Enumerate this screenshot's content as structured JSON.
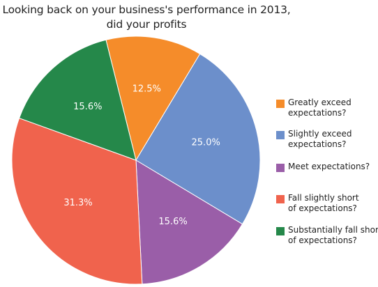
{
  "chart_data": {
    "type": "pie",
    "title": [
      "Looking back on your business's performance in 2013,",
      "did your profits"
    ],
    "categories": [
      [
        "Greatly exceed",
        "expectations?"
      ],
      [
        "Slightly exceed",
        "expectations?"
      ],
      [
        "Meet expectations?"
      ],
      [
        "Fall slightly short",
        "of expectations?"
      ],
      [
        "Substantially fall short",
        "of expectations?"
      ]
    ],
    "values": [
      12.5,
      25.0,
      15.6,
      31.3,
      15.6
    ],
    "data_labels": [
      "12.5%",
      "25.0%",
      "15.6%",
      "31.3%",
      "15.6%"
    ],
    "colors": [
      "#f58c2a",
      "#6c8fcb",
      "#9a5ea8",
      "#f0634d",
      "#25884a"
    ],
    "legend_position": "right"
  }
}
